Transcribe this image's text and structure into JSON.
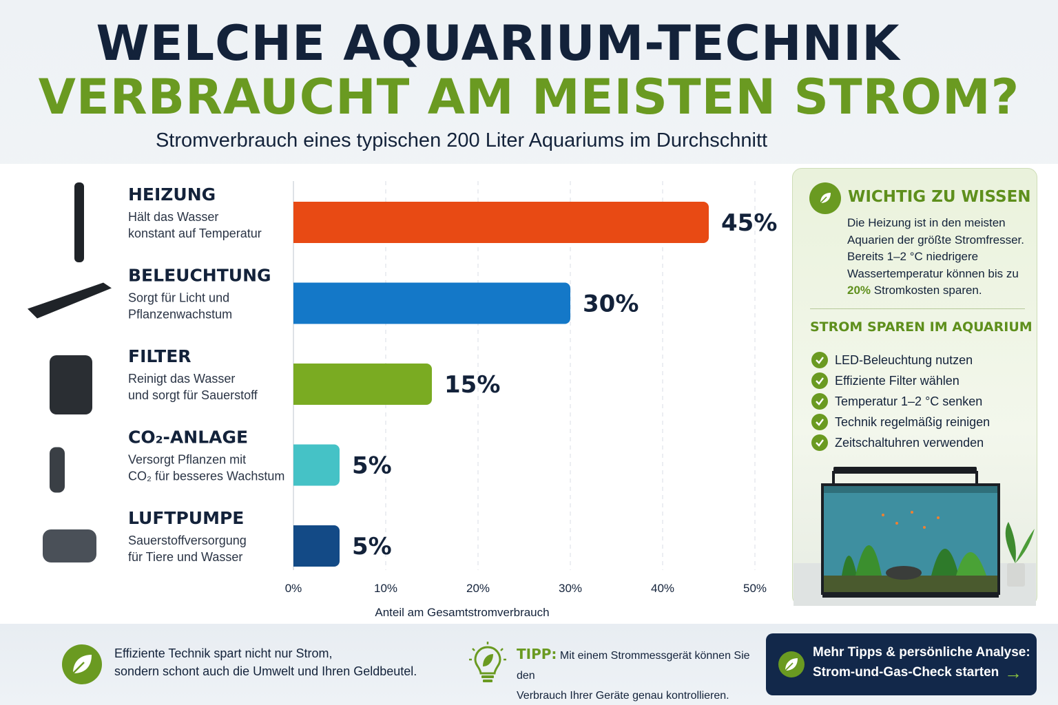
{
  "header": {
    "title_line1": "WELCHE AQUARIUM-TECHNIK",
    "title_line2": "VERBRAUCHT AM MEISTEN STROM?",
    "subtitle": "Stromverbrauch eines typischen 200 Liter Aquariums im Durchschnitt"
  },
  "chart_data": {
    "type": "bar",
    "orientation": "horizontal",
    "categories": [
      "HEIZUNG",
      "BELEUCHTUNG",
      "FILTER",
      "CO₂-ANLAGE",
      "LUFTPUMPE"
    ],
    "descriptions": [
      [
        "Hält das Wasser",
        "konstant auf Temperatur"
      ],
      [
        "Sorgt für Licht und",
        "Pflanzenwachstum"
      ],
      [
        "Reinigt das Wasser",
        "und sorgt für Sauerstoff"
      ],
      [
        "Versorgt Pflanzen mit",
        "CO₂ für besseres Wachstum"
      ],
      [
        "Sauerstoffversorgung",
        "für Tiere und Wasser"
      ]
    ],
    "values": [
      45,
      30,
      15,
      5,
      5
    ],
    "value_labels": [
      "45%",
      "30%",
      "15%",
      "5%",
      "5%"
    ],
    "colors": [
      "#e84a14",
      "#1478c8",
      "#7aab22",
      "#45c2c6",
      "#134a86"
    ],
    "icons": [
      "heater-icon",
      "led-light-icon",
      "canister-filter-icon",
      "co2-system-icon",
      "air-pump-icon"
    ],
    "xlim": [
      0,
      50
    ],
    "xticks": [
      "0%",
      "10%",
      "20%",
      "30%",
      "40%",
      "50%"
    ],
    "xlabel": "Anteil am Gesamtstromverbrauch",
    "grid": "vertical dashed"
  },
  "info_card": {
    "title": "WICHTIG ZU WISSEN",
    "text_before": "Die Heizung ist in den meisten Aquarien der größte Stromfresser. Bereits 1–2 °C niedrigere Wassertemperatur können bis zu ",
    "text_highlight": "20%",
    "text_after": " Stromkosten sparen.",
    "subtitle": "STROM SPAREN IM AQUARIUM",
    "tips": [
      "LED-Beleuchtung nutzen",
      "Effiziente Filter wählen",
      "Temperatur 1–2 °C senken",
      "Technik regelmäßig reinigen",
      "Zeitschaltuhren verwenden"
    ]
  },
  "footer": {
    "eco_line1": "Effiziente Technik spart nicht nur Strom,",
    "eco_line2": "sondern schont auch die Umwelt und Ihren Geldbeutel.",
    "tip_label": "TIPP:",
    "tip_text1": "Mit einem Strommessgerät können Sie den",
    "tip_text2": "Verbrauch Ihrer Geräte genau kontrollieren.",
    "cta_line1": "Mehr Tipps & persönliche Analyse:",
    "cta_line2": "Strom-und-Gas-Check starten",
    "cta_arrow": "→"
  },
  "colors": {
    "navy": "#13223a",
    "green": "#6a9a21",
    "cta_bg": "#12284a"
  }
}
